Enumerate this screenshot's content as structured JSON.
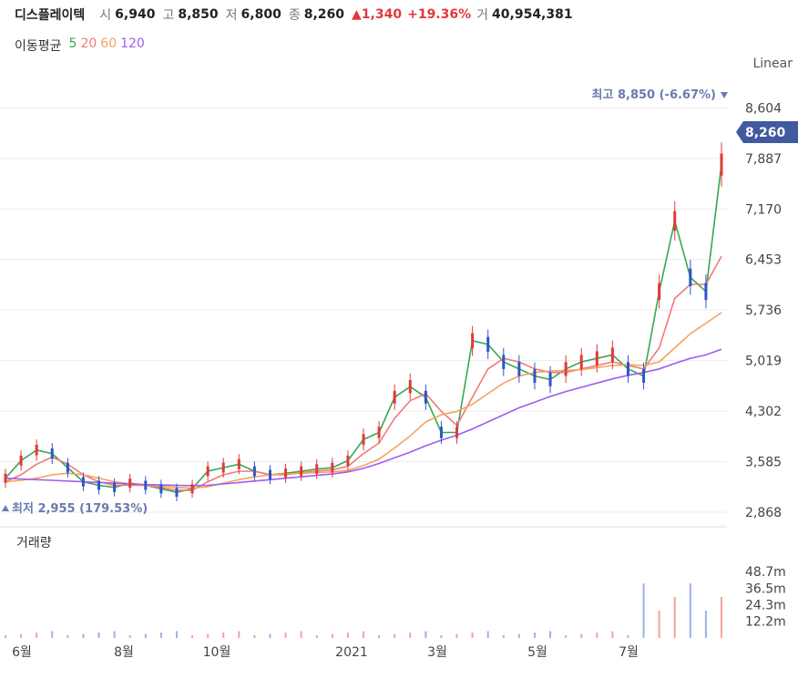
{
  "header": {
    "name": "디스플레이텍",
    "open_label": "시",
    "open": "6,940",
    "high_label": "고",
    "high": "8,850",
    "low_label": "저",
    "low": "6,800",
    "close_label": "종",
    "close": "8,260",
    "change": "▲1,340",
    "change_pct": "+19.36%",
    "volume_label": "거",
    "volume": "40,954,381"
  },
  "ma_legend": {
    "title": "이동평균",
    "items": [
      {
        "label": "5",
        "color": "#35a853"
      },
      {
        "label": "20",
        "color": "#f07a7a"
      },
      {
        "label": "60",
        "color": "#f5a25d"
      },
      {
        "label": "120",
        "color": "#a35cf0"
      }
    ]
  },
  "scale": "Linear",
  "annotations": {
    "max_label": "최고",
    "max_value": "8,850 (-6.67%)",
    "min_label": "최저",
    "min_value": "2,955 (179.53%)",
    "current_price": "8,260"
  },
  "volume_panel_title": "거래량",
  "colors": {
    "up": "#e03a3a",
    "down": "#2f55c7",
    "price_tag": "#3f5aa0",
    "grid": "#ececec"
  },
  "chart_data": {
    "type": "line",
    "price_axis": {
      "ticks": [
        "8,604",
        "7,887",
        "7,170",
        "6,453",
        "5,736",
        "5,019",
        "4,302",
        "3,585",
        "2,868"
      ],
      "tick_values": [
        8604,
        7887,
        7170,
        6453,
        5736,
        5019,
        4302,
        3585,
        2868
      ],
      "ylim": [
        2700,
        9100
      ]
    },
    "volume_axis": {
      "ticks": [
        "48.7m",
        "36.5m",
        "24.3m",
        "12.2m"
      ],
      "tick_values": [
        48.7,
        36.5,
        24.3,
        12.2
      ]
    },
    "x_ticks": [
      "6월",
      "8월",
      "10월",
      "2021",
      "3월",
      "5월",
      "7월"
    ],
    "series": [
      {
        "name": "5",
        "color": "#35a853",
        "values": [
          3350,
          3600,
          3750,
          3700,
          3500,
          3300,
          3250,
          3220,
          3280,
          3250,
          3200,
          3150,
          3200,
          3450,
          3500,
          3550,
          3450,
          3400,
          3420,
          3450,
          3480,
          3500,
          3600,
          3900,
          4000,
          4500,
          4650,
          4500,
          4000,
          4000,
          5300,
          5250,
          5000,
          4900,
          4800,
          4750,
          4900,
          5000,
          5050,
          5100,
          4900,
          4800,
          6000,
          7000,
          6200,
          6000,
          7800
        ]
      },
      {
        "name": "20",
        "color": "#f07a7a",
        "values": [
          3300,
          3400,
          3550,
          3650,
          3550,
          3400,
          3300,
          3250,
          3250,
          3250,
          3220,
          3180,
          3180,
          3300,
          3400,
          3450,
          3450,
          3400,
          3400,
          3430,
          3450,
          3470,
          3520,
          3700,
          3850,
          4200,
          4450,
          4550,
          4300,
          4100,
          4500,
          4900,
          5050,
          5000,
          4900,
          4850,
          4850,
          4900,
          4950,
          5000,
          4950,
          4900,
          5200,
          5900,
          6100,
          6100,
          6500
        ]
      },
      {
        "name": "60",
        "color": "#f5a25d",
        "values": [
          3300,
          3320,
          3350,
          3400,
          3420,
          3400,
          3350,
          3300,
          3270,
          3250,
          3240,
          3220,
          3210,
          3230,
          3280,
          3330,
          3370,
          3400,
          3410,
          3420,
          3430,
          3440,
          3460,
          3530,
          3620,
          3780,
          3950,
          4150,
          4250,
          4300,
          4400,
          4550,
          4700,
          4800,
          4850,
          4870,
          4880,
          4890,
          4920,
          4950,
          4960,
          4950,
          5000,
          5200,
          5400,
          5550,
          5700
        ]
      },
      {
        "name": "120",
        "color": "#a35cf0",
        "values": [
          3350,
          3340,
          3330,
          3320,
          3310,
          3300,
          3290,
          3280,
          3270,
          3260,
          3255,
          3250,
          3245,
          3250,
          3270,
          3290,
          3310,
          3330,
          3350,
          3370,
          3390,
          3410,
          3440,
          3490,
          3560,
          3640,
          3720,
          3810,
          3890,
          3960,
          4050,
          4150,
          4250,
          4350,
          4430,
          4510,
          4580,
          4640,
          4700,
          4760,
          4810,
          4850,
          4900,
          4980,
          5050,
          5100,
          5180
        ]
      }
    ]
  }
}
